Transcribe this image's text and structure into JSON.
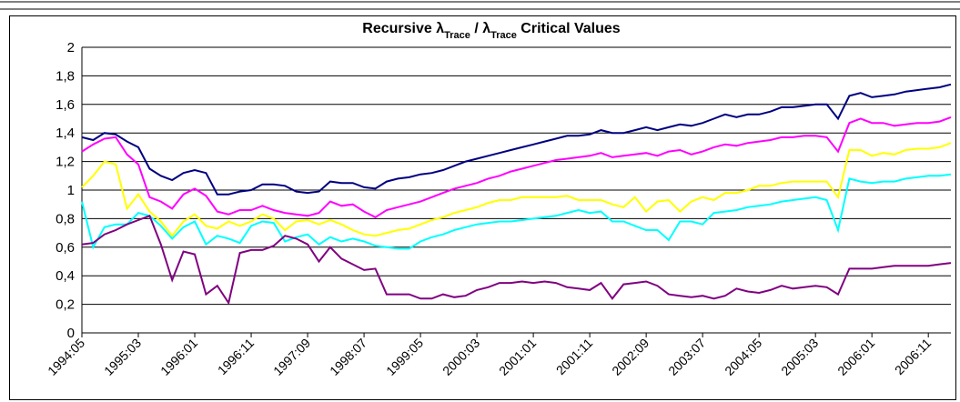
{
  "chart_data": {
    "type": "line",
    "title": [
      "Recursive λ",
      "Trace",
      " / λ",
      "Trace",
      " Critical Values"
    ],
    "categories": [
      "1994:05",
      null,
      null,
      null,
      null,
      "1995:03",
      null,
      null,
      null,
      null,
      "1996:01",
      null,
      null,
      null,
      null,
      "1996:11",
      null,
      null,
      null,
      null,
      "1997:09",
      null,
      null,
      null,
      null,
      "1998:07",
      null,
      null,
      null,
      null,
      "1999:05",
      null,
      null,
      null,
      null,
      "2000:03",
      null,
      null,
      null,
      null,
      "2001:01",
      null,
      null,
      null,
      null,
      "2001:11",
      null,
      null,
      null,
      null,
      "2002:09",
      null,
      null,
      null,
      null,
      "2003:07",
      null,
      null,
      null,
      null,
      "2004:05",
      null,
      null,
      null,
      null,
      "2005:03",
      null,
      null,
      null,
      null,
      "2006:01",
      null,
      null,
      null,
      null,
      "2006:11",
      null,
      null
    ],
    "ylim": [
      0,
      2
    ],
    "yticks": [
      0,
      {
        "value": 0.2,
        "label": "0,2"
      },
      {
        "value": 0.4,
        "label": "0,4"
      },
      {
        "value": 0.6,
        "label": "0,6"
      },
      {
        "value": 0.8,
        "label": "0,8"
      },
      1,
      {
        "value": 1.2,
        "label": "1,2"
      },
      {
        "value": 1.4,
        "label": "1,4"
      },
      {
        "value": 1.6,
        "label": "1,6"
      },
      {
        "value": 1.8,
        "label": "1,8"
      },
      2
    ],
    "grid": true,
    "series": [
      {
        "color": "#000080",
        "values": [
          1.37,
          1.35,
          1.4,
          1.39,
          1.34,
          1.3,
          1.15,
          1.1,
          1.07,
          1.12,
          1.14,
          1.12,
          0.97,
          0.97,
          0.99,
          1.0,
          1.04,
          1.04,
          1.03,
          0.99,
          0.98,
          0.99,
          1.06,
          1.05,
          1.05,
          1.02,
          1.01,
          1.06,
          1.08,
          1.09,
          1.11,
          1.12,
          1.14,
          1.17,
          1.2,
          1.22,
          1.24,
          1.26,
          1.28,
          1.3,
          1.32,
          1.34,
          1.36,
          1.38,
          1.38,
          1.39,
          1.42,
          1.4,
          1.4,
          1.42,
          1.44,
          1.42,
          1.44,
          1.46,
          1.45,
          1.47,
          1.5,
          1.53,
          1.51,
          1.53,
          1.53,
          1.55,
          1.58,
          1.58,
          1.59,
          1.6,
          1.6,
          1.5,
          1.66,
          1.68,
          1.65,
          1.66,
          1.67,
          1.69,
          1.7,
          1.71,
          1.72,
          1.74
        ]
      },
      {
        "color": "#ff00ff",
        "values": [
          1.27,
          1.32,
          1.36,
          1.37,
          1.25,
          1.18,
          0.95,
          0.92,
          0.87,
          0.97,
          1.01,
          0.96,
          0.85,
          0.83,
          0.86,
          0.86,
          0.89,
          0.86,
          0.84,
          0.83,
          0.82,
          0.84,
          0.92,
          0.89,
          0.9,
          0.85,
          0.81,
          0.86,
          0.88,
          0.9,
          0.92,
          0.95,
          0.98,
          1.01,
          1.03,
          1.05,
          1.08,
          1.1,
          1.13,
          1.15,
          1.17,
          1.19,
          1.21,
          1.22,
          1.23,
          1.24,
          1.26,
          1.23,
          1.24,
          1.25,
          1.26,
          1.24,
          1.27,
          1.28,
          1.25,
          1.27,
          1.3,
          1.32,
          1.31,
          1.33,
          1.34,
          1.35,
          1.37,
          1.37,
          1.38,
          1.38,
          1.37,
          1.27,
          1.47,
          1.5,
          1.47,
          1.47,
          1.45,
          1.46,
          1.47,
          1.47,
          1.48,
          1.51
        ]
      },
      {
        "color": "#ffff00",
        "values": [
          1.02,
          1.1,
          1.2,
          1.18,
          0.87,
          0.97,
          0.85,
          0.78,
          0.68,
          0.78,
          0.83,
          0.75,
          0.73,
          0.78,
          0.75,
          0.78,
          0.83,
          0.8,
          0.72,
          0.78,
          0.79,
          0.76,
          0.79,
          0.76,
          0.72,
          0.69,
          0.68,
          0.7,
          0.72,
          0.73,
          0.76,
          0.79,
          0.81,
          0.84,
          0.86,
          0.88,
          0.91,
          0.93,
          0.93,
          0.95,
          0.95,
          0.95,
          0.95,
          0.96,
          0.93,
          0.93,
          0.93,
          0.9,
          0.88,
          0.95,
          0.85,
          0.92,
          0.93,
          0.85,
          0.92,
          0.95,
          0.93,
          0.98,
          0.98,
          1.0,
          1.03,
          1.03,
          1.05,
          1.06,
          1.06,
          1.06,
          1.06,
          0.95,
          1.28,
          1.28,
          1.24,
          1.26,
          1.25,
          1.28,
          1.29,
          1.29,
          1.3,
          1.33
        ]
      },
      {
        "color": "#00ffff",
        "values": [
          0.92,
          0.6,
          0.74,
          0.76,
          0.76,
          0.84,
          0.82,
          0.75,
          0.66,
          0.74,
          0.78,
          0.62,
          0.68,
          0.66,
          0.63,
          0.75,
          0.78,
          0.77,
          0.64,
          0.67,
          0.69,
          0.62,
          0.67,
          0.64,
          0.66,
          0.64,
          0.61,
          0.6,
          0.59,
          0.59,
          0.64,
          0.67,
          0.69,
          0.72,
          0.74,
          0.76,
          0.77,
          0.78,
          0.78,
          0.79,
          0.8,
          0.81,
          0.82,
          0.84,
          0.86,
          0.84,
          0.85,
          0.78,
          0.78,
          0.75,
          0.72,
          0.72,
          0.65,
          0.78,
          0.78,
          0.76,
          0.84,
          0.85,
          0.86,
          0.88,
          0.89,
          0.9,
          0.92,
          0.93,
          0.94,
          0.95,
          0.93,
          0.72,
          1.08,
          1.06,
          1.05,
          1.06,
          1.06,
          1.08,
          1.09,
          1.1,
          1.1,
          1.11
        ]
      },
      {
        "color": "#800080",
        "values": [
          0.62,
          0.63,
          0.69,
          0.72,
          0.76,
          0.79,
          0.82,
          0.62,
          0.37,
          0.57,
          0.55,
          0.27,
          0.33,
          0.21,
          0.56,
          0.58,
          0.58,
          0.61,
          0.68,
          0.66,
          0.62,
          0.5,
          0.6,
          0.52,
          0.48,
          0.44,
          0.45,
          0.27,
          0.27,
          0.27,
          0.24,
          0.24,
          0.27,
          0.25,
          0.26,
          0.3,
          0.32,
          0.35,
          0.35,
          0.36,
          0.35,
          0.36,
          0.35,
          0.32,
          0.31,
          0.3,
          0.35,
          0.24,
          0.34,
          0.35,
          0.36,
          0.33,
          0.27,
          0.26,
          0.25,
          0.26,
          0.24,
          0.26,
          0.31,
          0.29,
          0.28,
          0.3,
          0.33,
          0.31,
          0.32,
          0.33,
          0.32,
          0.27,
          0.45,
          0.45,
          0.45,
          0.46,
          0.47,
          0.47,
          0.47,
          0.47,
          0.48,
          0.49
        ]
      }
    ]
  }
}
